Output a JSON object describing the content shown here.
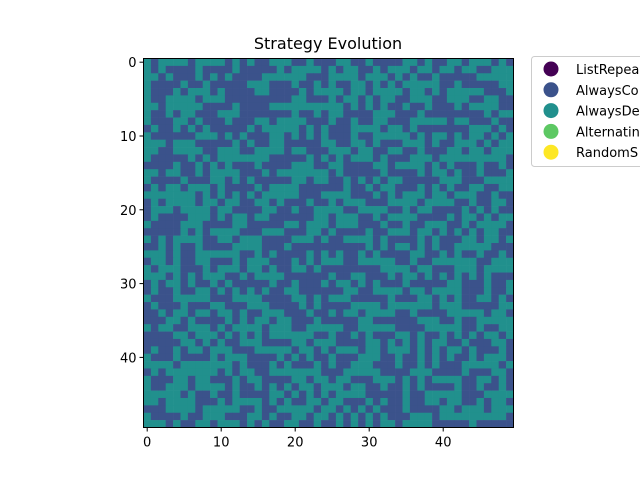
{
  "chart_data": {
    "type": "heatmap",
    "title": "Strategy Evolution",
    "xlabel": "",
    "ylabel": "",
    "grid": {
      "rows": 50,
      "cols": 50
    },
    "x_ticks": [
      0,
      10,
      20,
      30,
      40
    ],
    "y_ticks": [
      0,
      10,
      20,
      30,
      40
    ],
    "xlim": [
      -0.5,
      49.5
    ],
    "ylim": [
      49.5,
      -0.5
    ],
    "y_axis_inverted": true,
    "grid_lines": false,
    "legend_position": "outside-top-right",
    "categories": [
      {
        "name": "ListRepea",
        "color": "#440154"
      },
      {
        "name": "AlwaysCo",
        "color": "#3b528b"
      },
      {
        "name": "AlwaysDe",
        "color": "#21908d"
      },
      {
        "name": "Alternatin",
        "color": "#5dc863"
      },
      {
        "name": "RandomS",
        "color": "#fde725"
      }
    ],
    "cell_category_distribution": {
      "AlwaysCo": 0.5,
      "AlwaysDe": 0.5,
      "ListRepea": 0,
      "Alternatin": 0,
      "RandomS": 0
    },
    "cell_layout": "random mix of the two categories"
  }
}
